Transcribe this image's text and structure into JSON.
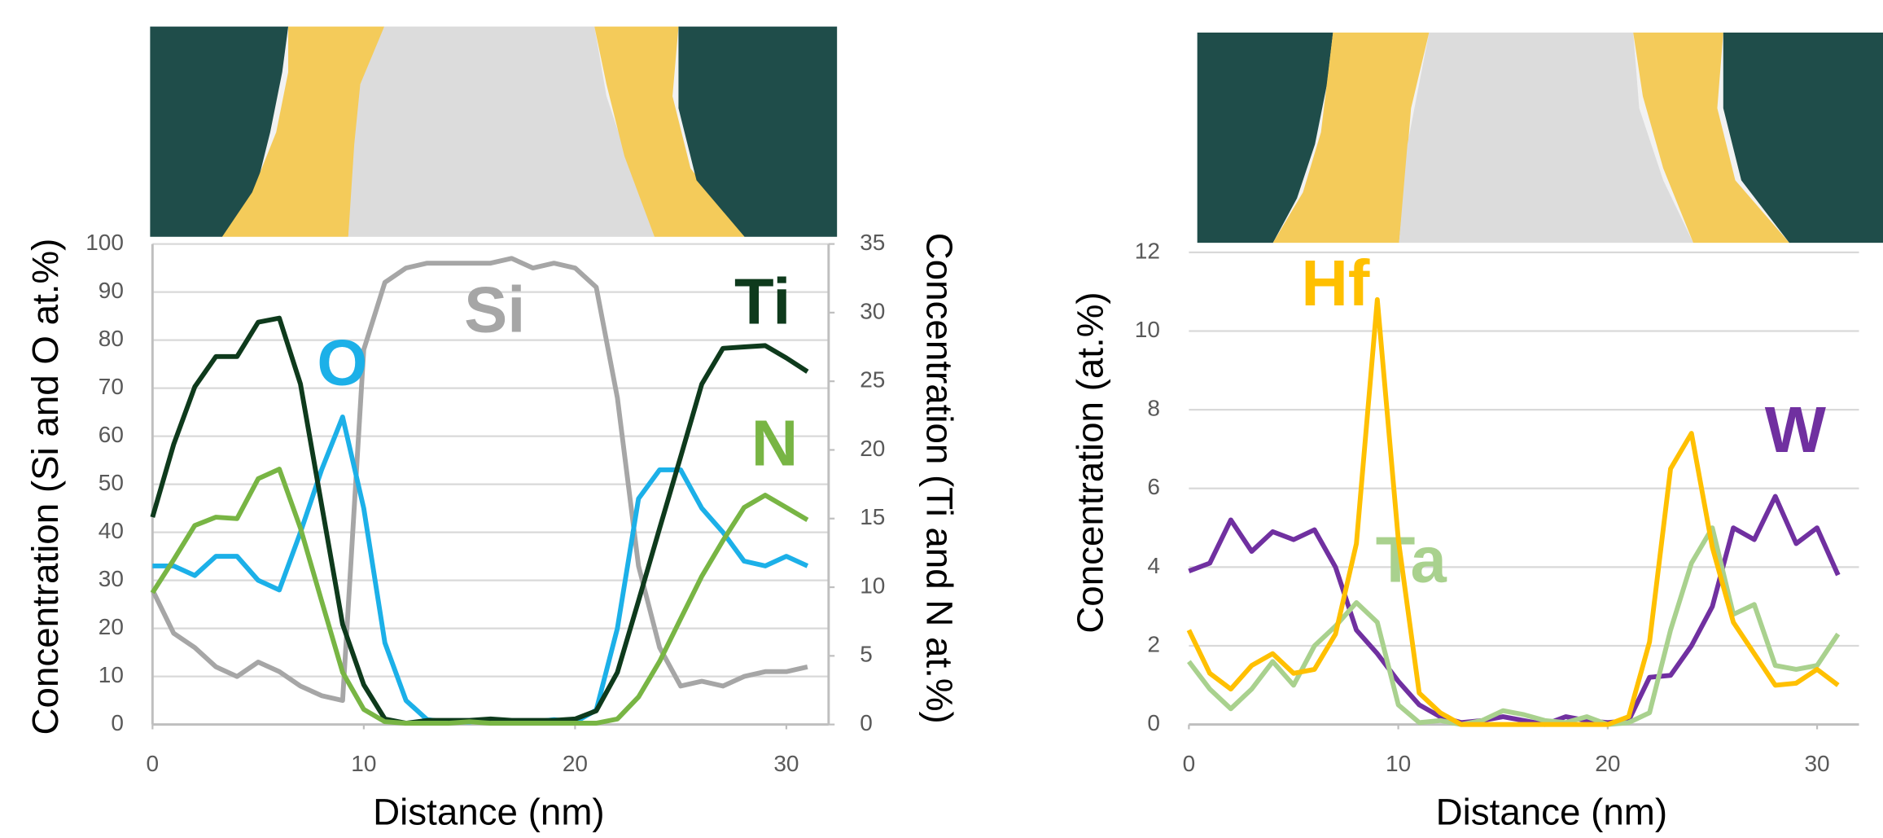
{
  "chart_data": [
    {
      "type": "line",
      "xlabel": "Distance (nm)",
      "ylabel": "Concentration (Si and O at.%)",
      "y2label": "Concentration (Ti and N at.%)",
      "x": [
        0,
        1,
        2,
        3,
        4,
        5,
        6,
        7,
        8,
        9,
        10,
        11,
        12,
        13,
        14,
        15,
        16,
        17,
        18,
        19,
        20,
        21,
        22,
        23,
        24,
        25,
        26,
        27,
        28,
        29,
        30,
        31
      ],
      "xlim": [
        0,
        32
      ],
      "xticks": [
        0,
        10,
        20,
        30
      ],
      "ylim": [
        0,
        100
      ],
      "yticks": [
        0,
        10,
        20,
        30,
        40,
        50,
        60,
        70,
        80,
        90,
        100
      ],
      "y2lim": [
        0,
        35
      ],
      "y2ticks": [
        0,
        5,
        10,
        15,
        20,
        25,
        30,
        35
      ],
      "grid": true,
      "series": [
        {
          "name": "Si",
          "color": "#a6a6a6",
          "values": [
            28,
            19,
            16,
            12,
            10,
            13,
            11,
            8,
            6,
            5,
            78,
            92,
            95,
            96,
            96,
            96,
            96,
            97,
            95,
            96,
            95,
            91,
            68,
            33,
            16,
            8,
            9,
            8,
            10,
            11,
            11,
            12
          ]
        },
        {
          "name": "O",
          "color": "#1cb0e8",
          "values": [
            33,
            33,
            31,
            35,
            35,
            30,
            28,
            40,
            53,
            64,
            45,
            17,
            5,
            1,
            0.5,
            0.5,
            1,
            0.5,
            0.5,
            1,
            0.5,
            3,
            20,
            47,
            53,
            53,
            45,
            40,
            34,
            33,
            35,
            33
          ]
        },
        {
          "name": "Ti",
          "color": "#0e3a1c",
          "axis": "y2",
          "values": [
            15.1,
            20.4,
            24.6,
            26.8,
            26.8,
            29.3,
            29.6,
            24.8,
            16,
            7.3,
            2.9,
            0.4,
            0.1,
            0.3,
            0.3,
            0.3,
            0.4,
            0.3,
            0.3,
            0.3,
            0.4,
            1,
            3.8,
            9,
            14.3,
            19.5,
            24.8,
            27.4,
            27.5,
            27.6,
            26.7,
            25.7
          ]
        },
        {
          "name": "N",
          "color": "#78b544",
          "axis": "y2",
          "values": [
            9.6,
            12,
            14.5,
            15.1,
            15,
            17.9,
            18.6,
            14.3,
            9,
            3.8,
            1.1,
            0.2,
            0.1,
            0.1,
            0.1,
            0.2,
            0.1,
            0.1,
            0.1,
            0.1,
            0.1,
            0.1,
            0.4,
            2,
            4.6,
            7.7,
            10.8,
            13.4,
            15.8,
            16.7,
            15.8,
            14.9
          ]
        }
      ]
    },
    {
      "type": "line",
      "xlabel": "Distance (nm)",
      "ylabel": "Concentration (at.%)",
      "x": [
        0,
        1,
        2,
        3,
        4,
        5,
        6,
        7,
        8,
        9,
        10,
        11,
        12,
        13,
        14,
        15,
        16,
        17,
        18,
        19,
        20,
        21,
        22,
        23,
        24,
        25,
        26,
        27,
        28,
        29,
        30,
        31
      ],
      "xlim": [
        0,
        32
      ],
      "xticks": [
        0,
        10,
        20,
        30
      ],
      "ylim": [
        0,
        12
      ],
      "yticks": [
        0,
        2,
        4,
        6,
        8,
        10,
        12
      ],
      "grid": true,
      "series": [
        {
          "name": "W",
          "color": "#7030a0",
          "values": [
            3.9,
            4.1,
            5.2,
            4.4,
            4.9,
            4.7,
            4.95,
            4.0,
            2.4,
            1.8,
            1.1,
            0.5,
            0.2,
            0.05,
            0.1,
            0.2,
            0.1,
            0,
            0.2,
            0.1,
            0.05,
            0.1,
            1.2,
            1.25,
            2.0,
            3.0,
            5.0,
            4.7,
            5.8,
            4.6,
            5.0,
            3.8
          ]
        },
        {
          "name": "Ta",
          "color": "#a9d18e",
          "values": [
            1.6,
            0.9,
            0.4,
            0.9,
            1.6,
            1.0,
            2.0,
            2.5,
            3.1,
            2.6,
            0.5,
            0.05,
            0.1,
            0,
            0.1,
            0.35,
            0.25,
            0.1,
            0.05,
            0.2,
            0,
            0.05,
            0.3,
            2.4,
            4.1,
            5.0,
            2.8,
            3.05,
            1.5,
            1.4,
            1.5,
            2.3
          ]
        },
        {
          "name": "Hf",
          "color": "#ffc000",
          "values": [
            2.4,
            1.3,
            0.9,
            1.5,
            1.8,
            1.3,
            1.4,
            2.3,
            4.6,
            10.8,
            4.7,
            0.8,
            0.3,
            0,
            0,
            0,
            0,
            0,
            0,
            0,
            0,
            0.2,
            2.1,
            6.5,
            7.4,
            4.5,
            2.6,
            1.8,
            1.0,
            1.05,
            1.4,
            1.0
          ]
        }
      ]
    }
  ]
}
